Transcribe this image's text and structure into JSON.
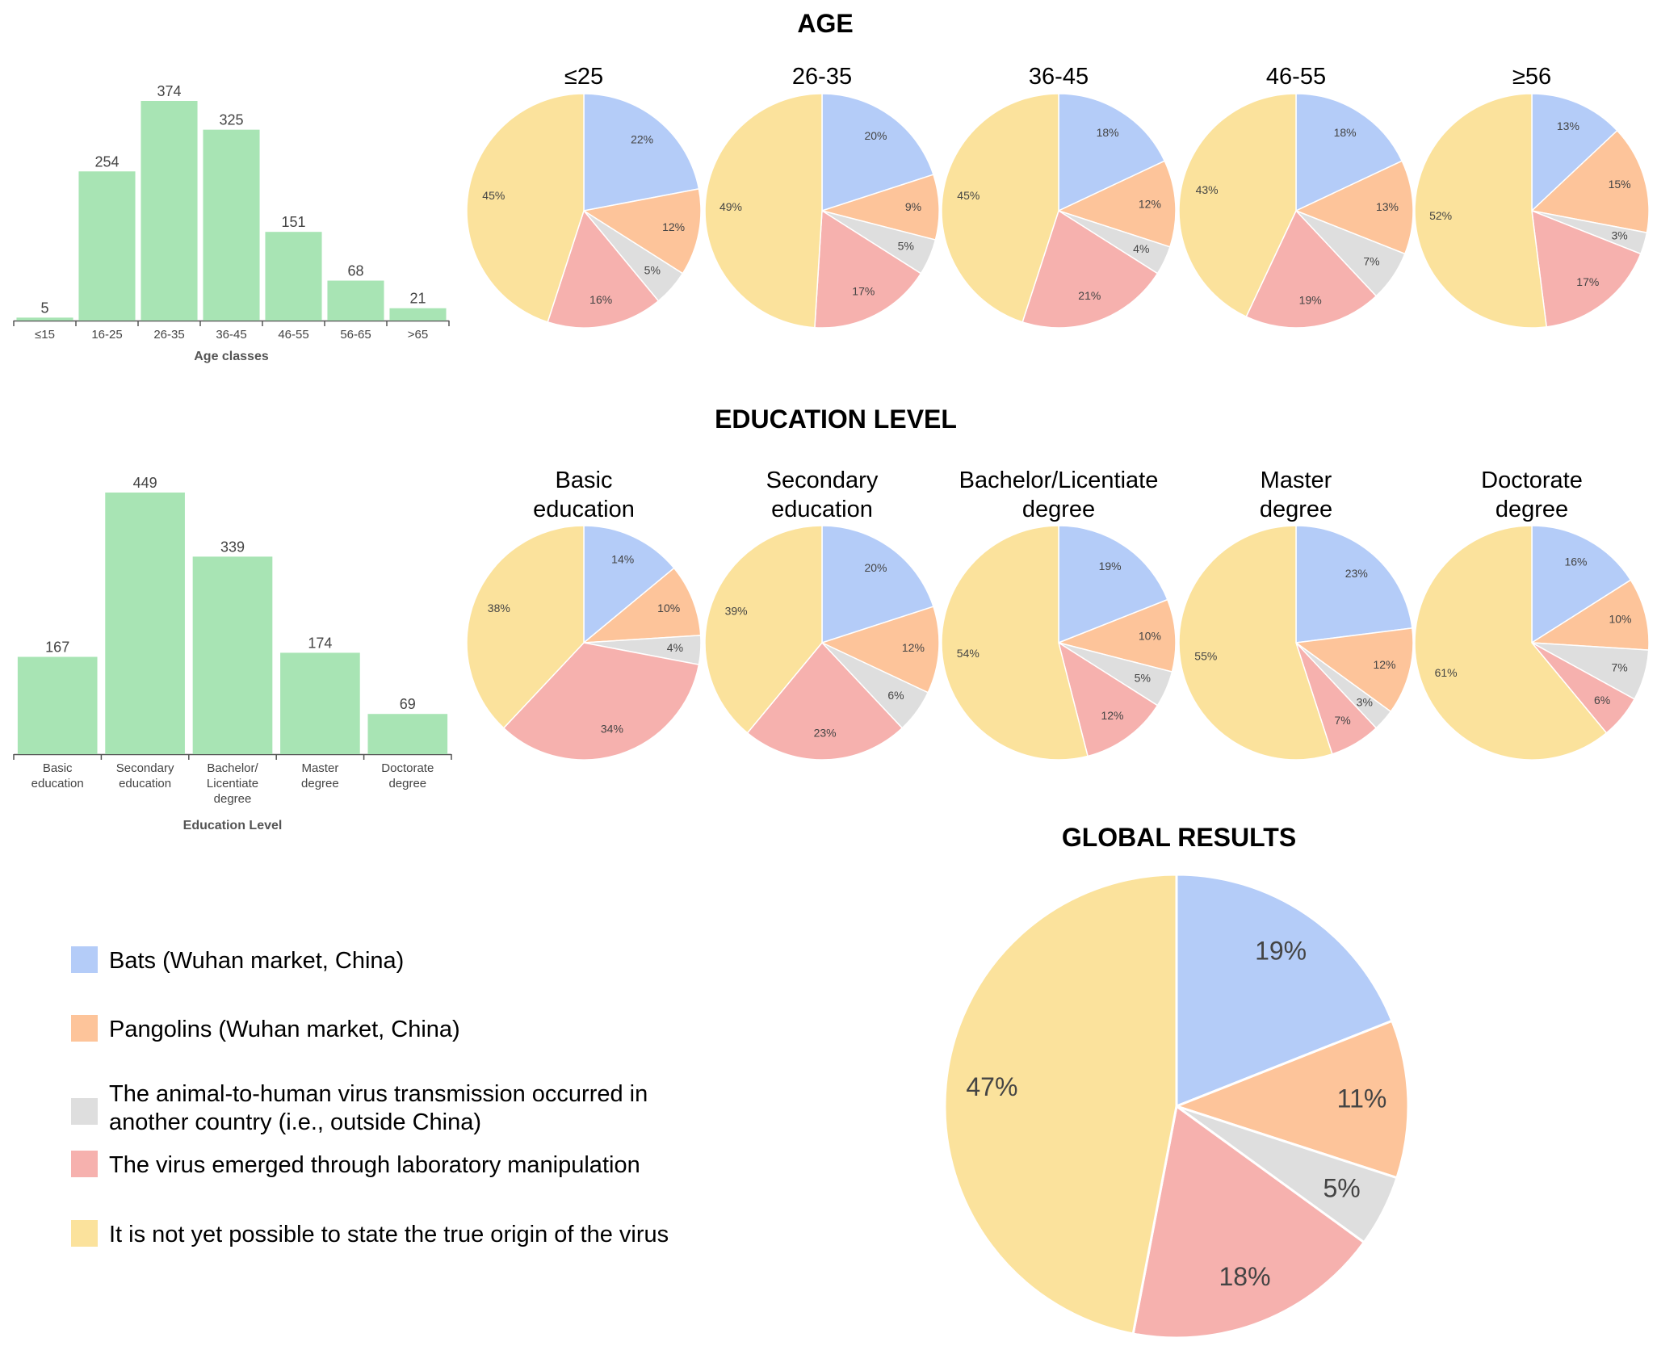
{
  "sections": {
    "age": "AGE",
    "education": "EDUCATION LEVEL",
    "global": "GLOBAL RESULTS"
  },
  "colors": {
    "bats": "#b4ccf8",
    "pangolins": "#fdc49a",
    "other_country": "#dedede",
    "laboratory": "#f6b1ae",
    "unknown": "#fbe29c",
    "bar": "#a8e4b4",
    "axis": "#555555"
  },
  "legend": [
    {
      "key": "bats",
      "lines": [
        "Bats (Wuhan market, China)"
      ]
    },
    {
      "key": "pangolins",
      "lines": [
        "Pangolins (Wuhan market, China)"
      ]
    },
    {
      "key": "other_country",
      "lines": [
        "The animal-to-human virus transmission occurred in",
        "another country (i.e., outside China)"
      ]
    },
    {
      "key": "laboratory",
      "lines": [
        "The virus emerged through laboratory manipulation"
      ]
    },
    {
      "key": "unknown",
      "lines": [
        "It is not yet possible to state the true origin of the virus"
      ]
    }
  ],
  "chart_data": [
    {
      "id": "age-bars",
      "type": "bar",
      "categories": [
        "≤15",
        "16-25",
        "26-35",
        "36-45",
        "46-55",
        "56-65",
        ">65"
      ],
      "values": [
        5,
        254,
        374,
        325,
        151,
        68,
        21
      ],
      "xlabel": "Age classes",
      "ylabel": "",
      "ylim": [
        0,
        374
      ]
    },
    {
      "id": "education-bars",
      "type": "bar",
      "categories": [
        [
          "Basic",
          "education"
        ],
        [
          "Secondary",
          "education"
        ],
        [
          "Bachelor/",
          "Licentiate",
          "degree"
        ],
        [
          "Master",
          "degree"
        ],
        [
          "Doctorate",
          "degree"
        ]
      ],
      "values": [
        167,
        449,
        339,
        174,
        69
      ],
      "xlabel": "Education Level",
      "ylabel": "",
      "ylim": [
        0,
        449
      ]
    },
    {
      "id": "age-pies",
      "type": "pie",
      "slice_order": [
        "bats",
        "pangolins",
        "other_country",
        "laboratory",
        "unknown"
      ],
      "pies": [
        {
          "title": [
            "≤25"
          ],
          "values": [
            22,
            12,
            5,
            16,
            45
          ]
        },
        {
          "title": [
            "26-35"
          ],
          "values": [
            20,
            9,
            5,
            17,
            49
          ]
        },
        {
          "title": [
            "36-45"
          ],
          "values": [
            18,
            12,
            4,
            21,
            45
          ]
        },
        {
          "title": [
            "46-55"
          ],
          "values": [
            18,
            13,
            7,
            19,
            43
          ]
        },
        {
          "title": [
            "≥56"
          ],
          "values": [
            13,
            15,
            3,
            17,
            52
          ]
        }
      ]
    },
    {
      "id": "education-pies",
      "type": "pie",
      "slice_order": [
        "bats",
        "pangolins",
        "other_country",
        "laboratory",
        "unknown"
      ],
      "pies": [
        {
          "title": [
            "Basic",
            "education"
          ],
          "values": [
            14,
            10,
            4,
            34,
            38
          ]
        },
        {
          "title": [
            "Secondary",
            "education"
          ],
          "values": [
            20,
            12,
            6,
            23,
            39
          ]
        },
        {
          "title": [
            "Bachelor/Licentiate",
            "degree"
          ],
          "values": [
            19,
            10,
            5,
            12,
            54
          ]
        },
        {
          "title": [
            "Master",
            "degree"
          ],
          "values": [
            23,
            12,
            3,
            7,
            55
          ]
        },
        {
          "title": [
            "Doctorate",
            "degree"
          ],
          "values": [
            16,
            10,
            7,
            6,
            61
          ]
        }
      ]
    },
    {
      "id": "global-pie",
      "type": "pie",
      "slice_order": [
        "bats",
        "pangolins",
        "other_country",
        "laboratory",
        "unknown"
      ],
      "pies": [
        {
          "title": [],
          "values": [
            19,
            11,
            5,
            18,
            47
          ]
        }
      ]
    }
  ]
}
